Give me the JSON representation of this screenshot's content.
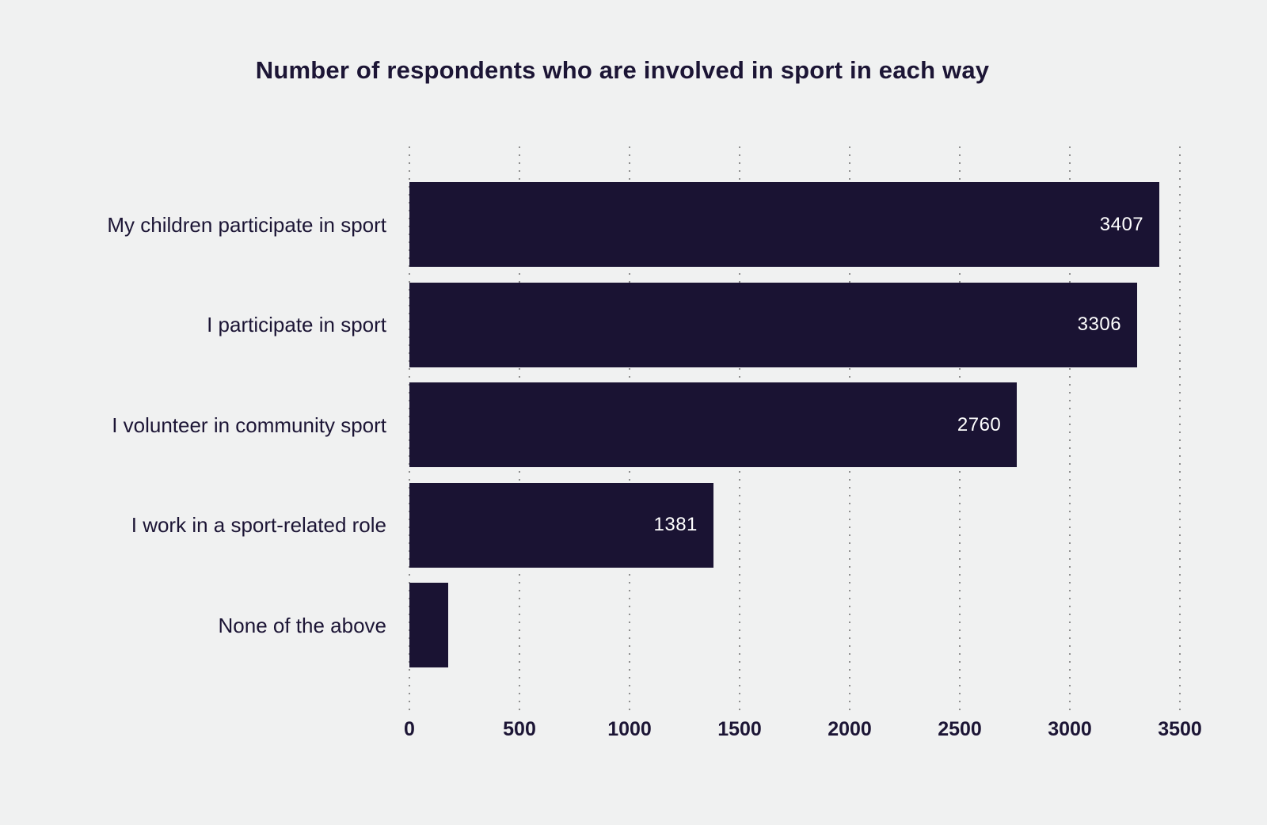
{
  "chart_data": {
    "type": "bar",
    "orientation": "horizontal",
    "title": "Number of respondents who are involved in sport in each way",
    "categories": [
      "My children participate in sport",
      "I participate in sport",
      "I volunteer in community sport",
      "I work in a sport-related role",
      "None of the above"
    ],
    "values": [
      3407,
      3306,
      2760,
      1381,
      175
    ],
    "value_labels": [
      "3407",
      "3306",
      "2760",
      "1381",
      ""
    ],
    "xlabel": "",
    "ylabel": "",
    "xlim": [
      0,
      3500
    ],
    "ticks": [
      0,
      500,
      1000,
      1500,
      2000,
      2500,
      3000,
      3500
    ],
    "grid": "vertical-dotted",
    "legend": "none",
    "colors": {
      "background": "#f0f1f1",
      "bar": "#1a1333",
      "text": "#1c1535",
      "grid_dots": "#8f8f8f",
      "value_text": "#ffffff"
    }
  }
}
